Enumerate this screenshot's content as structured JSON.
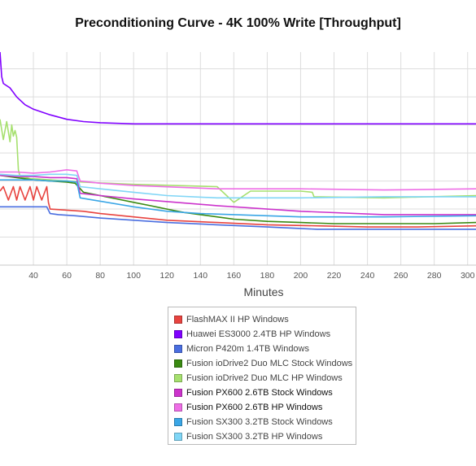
{
  "chart_data": {
    "type": "line",
    "title": "Preconditioning Curve - 4K 100% Write [Throughput]",
    "xlabel": "Minutes",
    "ylabel": "",
    "xlim": [
      20,
      305
    ],
    "ylim": [
      0,
      19
    ],
    "x_ticks": [
      40,
      60,
      80,
      100,
      120,
      140,
      160,
      180,
      200,
      220,
      240,
      260,
      280,
      300
    ],
    "x_tick_labels": [
      "40",
      "60",
      "80",
      "100",
      "120",
      "140",
      "160",
      "180",
      "200",
      "220",
      "240",
      "260",
      "280",
      "300"
    ],
    "y_gridlines": [
      2.5,
      5,
      7.5,
      10,
      12.5,
      15,
      17.5
    ],
    "legend_position": "bottom",
    "series": [
      {
        "name": "FlashMAX II HP Windows",
        "color": "#e8433f",
        "x": [
          20,
          22,
          25,
          28,
          30,
          32,
          35,
          38,
          40,
          42,
          45,
          48,
          49,
          50,
          60,
          70,
          80,
          100,
          120,
          150,
          180,
          210,
          240,
          270,
          305
        ],
        "y": [
          6.6,
          7.0,
          5.8,
          7.0,
          5.8,
          7.0,
          5.8,
          7.0,
          5.8,
          7.0,
          5.8,
          7.0,
          5.6,
          5.0,
          4.9,
          4.8,
          4.6,
          4.3,
          4.0,
          3.8,
          3.6,
          3.5,
          3.4,
          3.4,
          3.5
        ]
      },
      {
        "name": "Huawei ES3000 2.4TB HP Windows",
        "color": "#8000ff",
        "x": [
          20,
          21,
          22,
          24,
          26,
          28,
          30,
          35,
          40,
          50,
          60,
          70,
          80,
          100,
          120,
          150,
          200,
          250,
          305
        ],
        "y": [
          19.0,
          16.8,
          16.2,
          16.0,
          15.8,
          15.4,
          15.0,
          14.3,
          13.9,
          13.4,
          13.0,
          12.8,
          12.7,
          12.6,
          12.6,
          12.6,
          12.6,
          12.6,
          12.6
        ]
      },
      {
        "name": "Micron P420m 1.4TB Windows",
        "color": "#4a6ee0",
        "x": [
          20,
          30,
          40,
          48,
          50,
          55,
          65,
          80,
          100,
          120,
          150,
          180,
          210,
          240,
          270,
          305
        ],
        "y": [
          5.2,
          5.2,
          5.2,
          5.2,
          4.6,
          4.5,
          4.4,
          4.2,
          4.0,
          3.8,
          3.6,
          3.4,
          3.2,
          3.2,
          3.2,
          3.2
        ]
      },
      {
        "name": "Fusion ioDrive2 Duo MLC Stock Windows",
        "color": "#3a8a12",
        "x": [
          20,
          30,
          40,
          50,
          60,
          65,
          70,
          80,
          90,
          100,
          110,
          120,
          130,
          140,
          150,
          160,
          180,
          200,
          220,
          250,
          280,
          305
        ],
        "y": [
          8.0,
          7.8,
          7.6,
          7.5,
          7.4,
          7.3,
          6.5,
          6.2,
          5.9,
          5.6,
          5.3,
          5.0,
          4.7,
          4.5,
          4.3,
          4.1,
          3.9,
          3.8,
          3.7,
          3.7,
          3.7,
          3.8
        ]
      },
      {
        "name": "Fusion ioDrive2 Duo MLC HP Windows",
        "color": "#a6e06e",
        "x": [
          20,
          22,
          24,
          26,
          27,
          28,
          29,
          30,
          31,
          32,
          34,
          36,
          38,
          40,
          50,
          60,
          70,
          100,
          150,
          160,
          170,
          200,
          207,
          208,
          250,
          305
        ],
        "y": [
          13.0,
          11.2,
          12.8,
          11.0,
          12.5,
          11.5,
          12.0,
          11.4,
          8.5,
          7.9,
          7.8,
          7.8,
          7.7,
          7.7,
          7.6,
          7.5,
          7.4,
          7.2,
          7.0,
          5.6,
          6.6,
          6.6,
          6.5,
          6.1,
          6.0,
          6.2
        ]
      },
      {
        "name": "Fusion PX600 2.6TB Stock Windows",
        "color": "#cc33cc",
        "x": [
          20,
          30,
          40,
          50,
          60,
          66,
          68,
          80,
          100,
          150,
          200,
          250,
          305
        ],
        "y": [
          8.0,
          7.9,
          7.9,
          7.8,
          7.8,
          7.7,
          6.4,
          6.2,
          5.9,
          5.3,
          4.8,
          4.5,
          4.5
        ]
      },
      {
        "name": "Fusion PX600 2.6TB HP Windows",
        "color": "#ee6ee6",
        "x": [
          20,
          30,
          40,
          50,
          60,
          66,
          68,
          80,
          100,
          150,
          200,
          250,
          305
        ],
        "y": [
          8.3,
          8.3,
          8.2,
          8.3,
          8.5,
          8.4,
          7.5,
          7.3,
          7.1,
          6.8,
          6.8,
          6.7,
          6.8
        ]
      },
      {
        "name": "Fusion SX300 3.2TB Stock Windows",
        "color": "#3aa6e6",
        "x": [
          20,
          30,
          40,
          50,
          60,
          66,
          68,
          80,
          100,
          120,
          140,
          160,
          180,
          200,
          220,
          250,
          305
        ],
        "y": [
          7.6,
          7.6,
          7.6,
          7.5,
          7.5,
          7.4,
          6.0,
          5.7,
          5.2,
          4.8,
          4.6,
          4.5,
          4.4,
          4.3,
          4.3,
          4.3,
          4.4
        ]
      },
      {
        "name": "Fusion SX300 3.2TB HP Windows",
        "color": "#80d6f6",
        "x": [
          20,
          30,
          40,
          50,
          60,
          66,
          68,
          80,
          100,
          120,
          150,
          200,
          250,
          305
        ],
        "y": [
          8.1,
          8.0,
          8.0,
          8.1,
          8.1,
          8.0,
          7.0,
          6.8,
          6.5,
          6.2,
          6.0,
          6.0,
          6.1,
          6.1
        ]
      }
    ]
  }
}
